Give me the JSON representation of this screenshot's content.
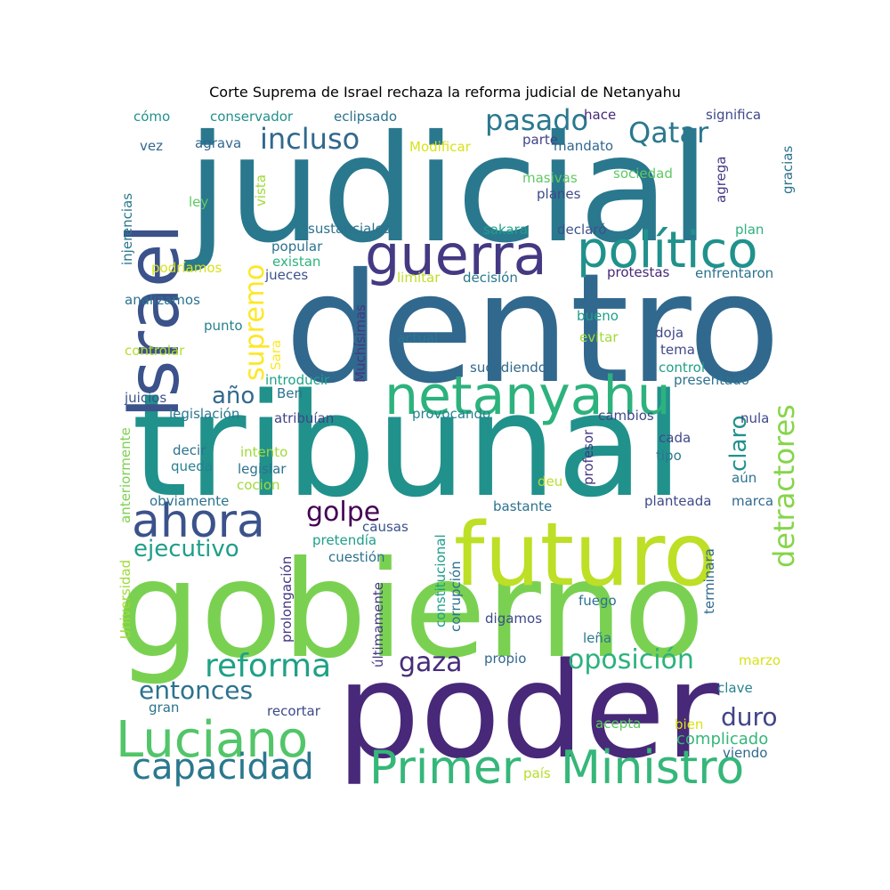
{
  "chart_data": {
    "type": "wordcloud",
    "title": "Corte Suprema de Israel rechaza la reforma judicial de Netanyahu",
    "words": [
      {
        "text": "judicial",
        "weight": 1.0,
        "color": "#2a788e"
      },
      {
        "text": "dentro",
        "weight": 0.99,
        "color": "#31688e"
      },
      {
        "text": "tribunal",
        "weight": 0.97,
        "color": "#21918c"
      },
      {
        "text": "gobierno",
        "weight": 0.96,
        "color": "#7ad151"
      },
      {
        "text": "poder",
        "weight": 0.95,
        "color": "#482878"
      },
      {
        "text": "futuro",
        "weight": 0.68,
        "color": "#bddf26"
      },
      {
        "text": "Israel",
        "weight": 0.54,
        "color": "#3b528b"
      },
      {
        "text": "guerra",
        "weight": 0.48,
        "color": "#443983"
      },
      {
        "text": "netanyahu",
        "weight": 0.48,
        "color": "#2db27d"
      },
      {
        "text": "político",
        "weight": 0.45,
        "color": "#21918c"
      },
      {
        "text": "Luciano",
        "weight": 0.45,
        "color": "#52c569"
      },
      {
        "text": "ahora",
        "weight": 0.44,
        "color": "#3b528b"
      },
      {
        "text": "Primer",
        "weight": 0.44,
        "color": "#35b779"
      },
      {
        "text": "Ministro",
        "weight": 0.44,
        "color": "#35b779"
      },
      {
        "text": "capacidad",
        "weight": 0.36,
        "color": "#2a788e"
      },
      {
        "text": "detractores",
        "weight": 0.33,
        "color": "#86d549"
      },
      {
        "text": "supremo",
        "weight": 0.32,
        "color": "#fde725"
      },
      {
        "text": "reforma",
        "weight": 0.32,
        "color": "#1fa187"
      },
      {
        "text": "oposición",
        "weight": 0.3,
        "color": "#2db27d"
      },
      {
        "text": "pasado",
        "weight": 0.29,
        "color": "#2a788e"
      },
      {
        "text": "Qatar",
        "weight": 0.29,
        "color": "#2a788e"
      },
      {
        "text": "incluso",
        "weight": 0.29,
        "color": "#31688e"
      },
      {
        "text": "gaza",
        "weight": 0.28,
        "color": "#472d7b"
      },
      {
        "text": "golpe",
        "weight": 0.26,
        "color": "#440154"
      },
      {
        "text": "duro",
        "weight": 0.26,
        "color": "#414487"
      },
      {
        "text": "entonces",
        "weight": 0.25,
        "color": "#2c728e"
      },
      {
        "text": "ejecutivo",
        "weight": 0.25,
        "color": "#1f9e89"
      },
      {
        "text": "claro",
        "weight": 0.23,
        "color": "#21918c"
      },
      {
        "text": "año",
        "weight": 0.23,
        "color": "#31688e"
      },
      {
        "text": "complicado",
        "weight": 0.18,
        "color": "#35b779"
      },
      {
        "text": "conservador",
        "weight": 0.14,
        "color": "#21918c"
      },
      {
        "text": "eclipsado",
        "weight": 0.14,
        "color": "#2c728e"
      },
      {
        "text": "cómo",
        "weight": 0.14,
        "color": "#21918c"
      },
      {
        "text": "hace",
        "weight": 0.14,
        "color": "#482878"
      },
      {
        "text": "significa",
        "weight": 0.14,
        "color": "#3e4989"
      },
      {
        "text": "vez",
        "weight": 0.14,
        "color": "#31688e"
      },
      {
        "text": "agrava",
        "weight": 0.14,
        "color": "#31688e"
      },
      {
        "text": "Modificar",
        "weight": 0.14,
        "color": "#d8e219"
      },
      {
        "text": "parte",
        "weight": 0.14,
        "color": "#414487"
      },
      {
        "text": "mandato",
        "weight": 0.14,
        "color": "#31688e"
      },
      {
        "text": "gracias",
        "weight": 0.14,
        "color": "#2c728e"
      },
      {
        "text": "injerencias",
        "weight": 0.14,
        "color": "#2a788e"
      },
      {
        "text": "vista",
        "weight": 0.14,
        "color": "#a0da39"
      },
      {
        "text": "masivas",
        "weight": 0.14,
        "color": "#5ec962"
      },
      {
        "text": "sociedad",
        "weight": 0.14,
        "color": "#5ec962"
      },
      {
        "text": "agrega",
        "weight": 0.14,
        "color": "#443983"
      },
      {
        "text": "ley",
        "weight": 0.14,
        "color": "#5ec962"
      },
      {
        "text": "planes",
        "weight": 0.14,
        "color": "#3e4989"
      },
      {
        "text": "sustanciales",
        "weight": 0.14,
        "color": "#2c728e"
      },
      {
        "text": "sakara",
        "weight": 0.14,
        "color": "#1f9e89"
      },
      {
        "text": "declaró",
        "weight": 0.14,
        "color": "#3b528b"
      },
      {
        "text": "plan",
        "weight": 0.14,
        "color": "#2db27d"
      },
      {
        "text": "popular",
        "weight": 0.14,
        "color": "#2c728e"
      },
      {
        "text": "existan",
        "weight": 0.14,
        "color": "#2db27d"
      },
      {
        "text": "podríamos",
        "weight": 0.14,
        "color": "#d8e219"
      },
      {
        "text": "jueces",
        "weight": 0.14,
        "color": "#3b528b"
      },
      {
        "text": "limitar",
        "weight": 0.14,
        "color": "#bddf26"
      },
      {
        "text": "decisión",
        "weight": 0.14,
        "color": "#2a788e"
      },
      {
        "text": "protestas",
        "weight": 0.14,
        "color": "#482878"
      },
      {
        "text": "enfrentaron",
        "weight": 0.14,
        "color": "#2c728e"
      },
      {
        "text": "analizamos",
        "weight": 0.14,
        "color": "#2c728e"
      },
      {
        "text": "Muchísimas",
        "weight": 0.14,
        "color": "#453781"
      },
      {
        "text": "bueno",
        "weight": 0.14,
        "color": "#1f9e89"
      },
      {
        "text": "punto",
        "weight": 0.14,
        "color": "#26828e"
      },
      {
        "text": "actual",
        "weight": 0.14,
        "color": "#2a788e"
      },
      {
        "text": "evitar",
        "weight": 0.14,
        "color": "#a0da39"
      },
      {
        "text": "doja",
        "weight": 0.14,
        "color": "#3e4989"
      },
      {
        "text": "controlar",
        "weight": 0.14,
        "color": "#b5de2b"
      },
      {
        "text": "Sara",
        "weight": 0.14,
        "color": "#fde725"
      },
      {
        "text": "tema",
        "weight": 0.14,
        "color": "#3e4989"
      },
      {
        "text": "sucediendo",
        "weight": 0.14,
        "color": "#31688e"
      },
      {
        "text": "control",
        "weight": 0.14,
        "color": "#1f9e89"
      },
      {
        "text": "introducir",
        "weight": 0.14,
        "color": "#1fa187"
      },
      {
        "text": "presentado",
        "weight": 0.14,
        "color": "#2c728e"
      },
      {
        "text": "juicios",
        "weight": 0.14,
        "color": "#3b528b"
      },
      {
        "text": "Ben",
        "weight": 0.14,
        "color": "#2c728e"
      },
      {
        "text": "legislación",
        "weight": 0.14,
        "color": "#2a788e"
      },
      {
        "text": "atribuían",
        "weight": 0.14,
        "color": "#414487"
      },
      {
        "text": "provocando",
        "weight": 0.14,
        "color": "#26828e"
      },
      {
        "text": "cambios",
        "weight": 0.14,
        "color": "#3e4989"
      },
      {
        "text": "nula",
        "weight": 0.14,
        "color": "#3e4989"
      },
      {
        "text": "profesor",
        "weight": 0.14,
        "color": "#443983"
      },
      {
        "text": "anteriormente",
        "weight": 0.14,
        "color": "#7ad151"
      },
      {
        "text": "decir",
        "weight": 0.14,
        "color": "#2c728e"
      },
      {
        "text": "intento",
        "weight": 0.14,
        "color": "#a0da39"
      },
      {
        "text": "cada",
        "weight": 0.14,
        "color": "#3e4989"
      },
      {
        "text": "queda",
        "weight": 0.14,
        "color": "#26828e"
      },
      {
        "text": "legislar",
        "weight": 0.14,
        "color": "#2c728e"
      },
      {
        "text": "tipo",
        "weight": 0.14,
        "color": "#2a788e"
      },
      {
        "text": "cocion",
        "weight": 0.14,
        "color": "#a0da39"
      },
      {
        "text": "deu",
        "weight": 0.14,
        "color": "#b5de2b"
      },
      {
        "text": "aún",
        "weight": 0.14,
        "color": "#2c728e"
      },
      {
        "text": "obviamente",
        "weight": 0.14,
        "color": "#2c728e"
      },
      {
        "text": "bastante",
        "weight": 0.14,
        "color": "#2c728e"
      },
      {
        "text": "planteada",
        "weight": 0.14,
        "color": "#3e4989"
      },
      {
        "text": "marca",
        "weight": 0.14,
        "color": "#31688e"
      },
      {
        "text": "Universidad",
        "weight": 0.14,
        "color": "#a0da39"
      },
      {
        "text": "causas",
        "weight": 0.14,
        "color": "#3b528b"
      },
      {
        "text": "pretendía",
        "weight": 0.14,
        "color": "#1f9e89"
      },
      {
        "text": "constitucional",
        "weight": 0.14,
        "color": "#1f9e89"
      },
      {
        "text": "corrupción",
        "weight": 0.14,
        "color": "#2c728e"
      },
      {
        "text": "terminara",
        "weight": 0.14,
        "color": "#31688e"
      },
      {
        "text": "cuestión",
        "weight": 0.14,
        "color": "#2c728e"
      },
      {
        "text": "prolongación",
        "weight": 0.14,
        "color": "#453781"
      },
      {
        "text": "últimamente",
        "weight": 0.14,
        "color": "#443983"
      },
      {
        "text": "fuego",
        "weight": 0.14,
        "color": "#2c728e"
      },
      {
        "text": "digamos",
        "weight": 0.14,
        "color": "#3e4989"
      },
      {
        "text": "leña",
        "weight": 0.14,
        "color": "#2a788e"
      },
      {
        "text": "propio",
        "weight": 0.14,
        "color": "#31688e"
      },
      {
        "text": "marzo",
        "weight": 0.14,
        "color": "#d8e219"
      },
      {
        "text": "clave",
        "weight": 0.14,
        "color": "#26828e"
      },
      {
        "text": "gran",
        "weight": 0.14,
        "color": "#2c728e"
      },
      {
        "text": "recortar",
        "weight": 0.14,
        "color": "#3e4989"
      },
      {
        "text": "acepta",
        "weight": 0.14,
        "color": "#5ec962"
      },
      {
        "text": "bien",
        "weight": 0.14,
        "color": "#d8e219"
      },
      {
        "text": "viendo",
        "weight": 0.14,
        "color": "#31688e"
      },
      {
        "text": "país",
        "weight": 0.14,
        "color": "#b5de2b"
      }
    ]
  }
}
